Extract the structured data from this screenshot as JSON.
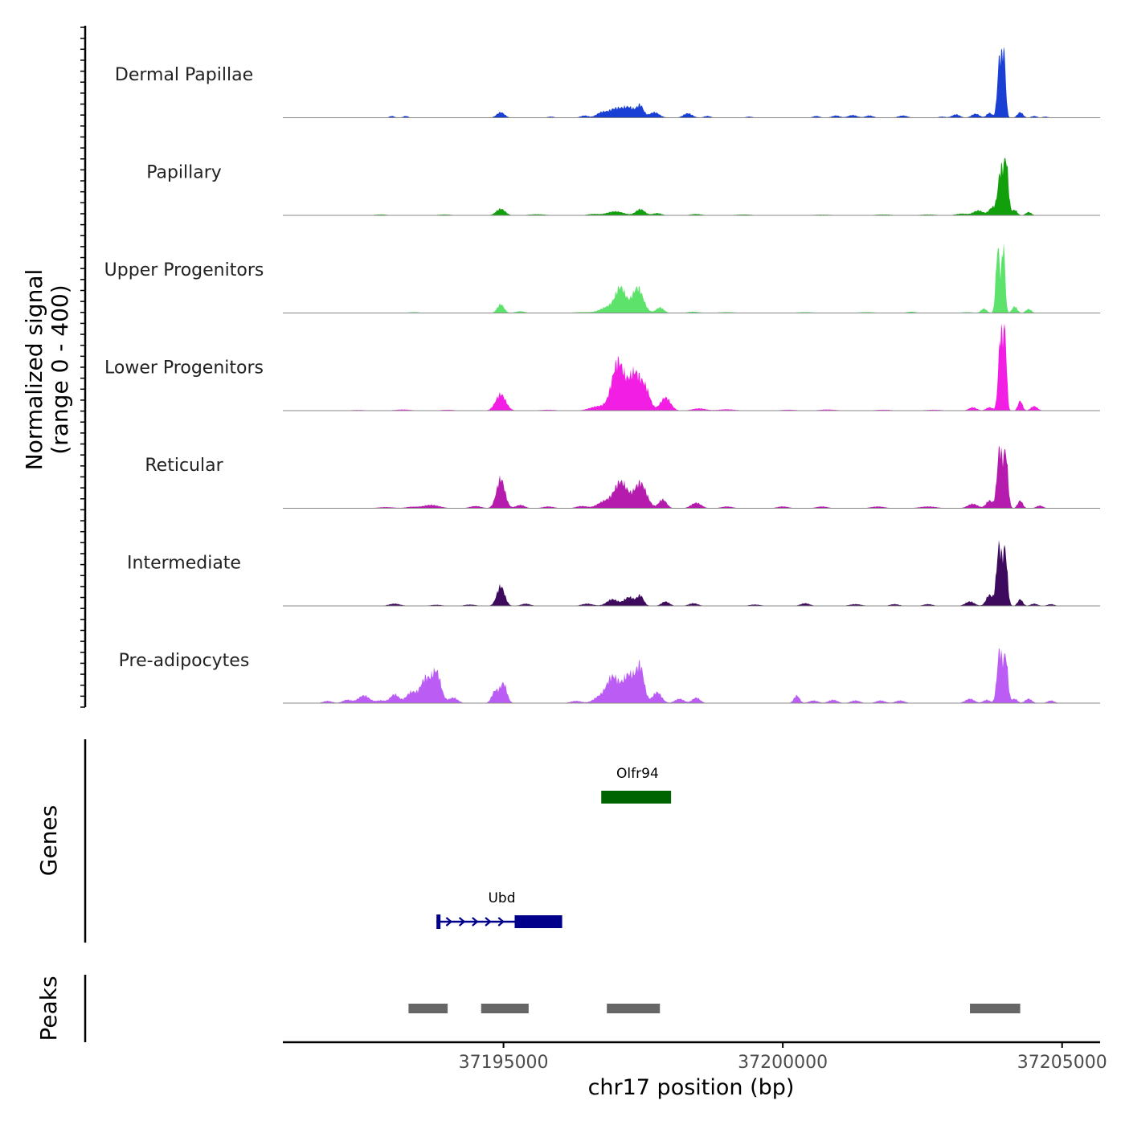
{
  "chart_data": {
    "type": "area",
    "title": "",
    "xlabel": "chr17 position (bp)",
    "ylabel_line1": "Normalized signal",
    "ylabel_line2": "(range 0 - 400)",
    "xlim": [
      37191050,
      37205680
    ],
    "ylim": [
      0,
      400
    ],
    "x_ticks": [
      37195000,
      37200000,
      37205000
    ],
    "x_tick_labels": [
      "37195000",
      "37200000",
      "37205000"
    ],
    "baseline_color": "#888888",
    "tracks": [
      {
        "name": "Dermal Papillae",
        "color": "#1a3fd4",
        "peaks": [
          [
            37193000,
            8,
            45
          ],
          [
            37193250,
            8,
            45
          ],
          [
            37194950,
            25,
            70
          ],
          [
            37195850,
            5,
            60
          ],
          [
            37196450,
            10,
            70
          ],
          [
            37196750,
            22,
            90
          ],
          [
            37197000,
            40,
            120
          ],
          [
            37197250,
            45,
            110
          ],
          [
            37197450,
            50,
            60
          ],
          [
            37197700,
            25,
            90
          ],
          [
            37198300,
            20,
            80
          ],
          [
            37198650,
            8,
            60
          ],
          [
            37199400,
            5,
            60
          ],
          [
            37200600,
            8,
            60
          ],
          [
            37200950,
            10,
            70
          ],
          [
            37201250,
            12,
            80
          ],
          [
            37201550,
            10,
            70
          ],
          [
            37202150,
            10,
            80
          ],
          [
            37202850,
            5,
            60
          ],
          [
            37203100,
            15,
            70
          ],
          [
            37203450,
            18,
            70
          ],
          [
            37203700,
            22,
            50
          ],
          [
            37203880,
            270,
            38
          ],
          [
            37203960,
            280,
            32
          ],
          [
            37204250,
            25,
            50
          ],
          [
            37204500,
            8,
            50
          ],
          [
            37204700,
            5,
            50
          ]
        ]
      },
      {
        "name": "Papillary",
        "color": "#129f0c",
        "peaks": [
          [
            37192800,
            4,
            120
          ],
          [
            37193950,
            4,
            120
          ],
          [
            37194950,
            30,
            80
          ],
          [
            37195600,
            5,
            150
          ],
          [
            37196600,
            6,
            100
          ],
          [
            37197000,
            18,
            150
          ],
          [
            37197450,
            28,
            80
          ],
          [
            37197750,
            10,
            80
          ],
          [
            37198450,
            6,
            100
          ],
          [
            37199300,
            4,
            150
          ],
          [
            37200700,
            3,
            200
          ],
          [
            37201800,
            4,
            150
          ],
          [
            37202600,
            4,
            150
          ],
          [
            37203200,
            8,
            100
          ],
          [
            37203500,
            22,
            90
          ],
          [
            37203750,
            35,
            60
          ],
          [
            37203900,
            200,
            50
          ],
          [
            37204000,
            230,
            40
          ],
          [
            37204150,
            25,
            45
          ],
          [
            37204400,
            15,
            50
          ]
        ]
      },
      {
        "name": "Upper Progenitors",
        "color": "#5de26b",
        "peaks": [
          [
            37193400,
            4,
            100
          ],
          [
            37194950,
            40,
            60
          ],
          [
            37195300,
            8,
            80
          ],
          [
            37196400,
            4,
            150
          ],
          [
            37196900,
            30,
            150
          ],
          [
            37197100,
            105,
            90
          ],
          [
            37197400,
            115,
            100
          ],
          [
            37197800,
            25,
            70
          ],
          [
            37198400,
            6,
            100
          ],
          [
            37199000,
            4,
            150
          ],
          [
            37200400,
            4,
            150
          ],
          [
            37201500,
            4,
            150
          ],
          [
            37202300,
            6,
            80
          ],
          [
            37203300,
            4,
            100
          ],
          [
            37203600,
            20,
            50
          ],
          [
            37203850,
            300,
            35
          ],
          [
            37203950,
            310,
            30
          ],
          [
            37204150,
            30,
            45
          ],
          [
            37204400,
            18,
            50
          ]
        ]
      },
      {
        "name": "Lower Progenitors",
        "color": "#f21ee4",
        "peaks": [
          [
            37192400,
            3,
            150
          ],
          [
            37193200,
            5,
            150
          ],
          [
            37194000,
            4,
            120
          ],
          [
            37194950,
            75,
            90
          ],
          [
            37195800,
            4,
            150
          ],
          [
            37196700,
            20,
            150
          ],
          [
            37197050,
            220,
            110
          ],
          [
            37197350,
            170,
            110
          ],
          [
            37197550,
            80,
            80
          ],
          [
            37197900,
            60,
            90
          ],
          [
            37198500,
            10,
            120
          ],
          [
            37199000,
            6,
            150
          ],
          [
            37200100,
            4,
            150
          ],
          [
            37200800,
            5,
            150
          ],
          [
            37201800,
            4,
            150
          ],
          [
            37202700,
            4,
            150
          ],
          [
            37203400,
            15,
            70
          ],
          [
            37203700,
            15,
            60
          ],
          [
            37203900,
            350,
            40
          ],
          [
            37203980,
            320,
            30
          ],
          [
            37204250,
            45,
            40
          ],
          [
            37204500,
            20,
            60
          ]
        ]
      },
      {
        "name": "Reticular",
        "color": "#b51cae",
        "peaks": [
          [
            37192900,
            5,
            150
          ],
          [
            37193700,
            15,
            150
          ],
          [
            37193350,
            6,
            100
          ],
          [
            37194500,
            10,
            100
          ],
          [
            37194950,
            135,
            75
          ],
          [
            37195300,
            15,
            80
          ],
          [
            37195800,
            8,
            100
          ],
          [
            37196400,
            10,
            100
          ],
          [
            37196800,
            30,
            120
          ],
          [
            37197100,
            120,
            120
          ],
          [
            37197450,
            115,
            110
          ],
          [
            37197850,
            40,
            70
          ],
          [
            37198450,
            25,
            90
          ],
          [
            37199000,
            8,
            100
          ],
          [
            37200000,
            8,
            100
          ],
          [
            37200700,
            8,
            100
          ],
          [
            37201700,
            8,
            120
          ],
          [
            37202600,
            8,
            150
          ],
          [
            37203400,
            20,
            90
          ],
          [
            37203700,
            35,
            60
          ],
          [
            37203880,
            270,
            45
          ],
          [
            37203990,
            250,
            40
          ],
          [
            37204250,
            35,
            45
          ],
          [
            37204600,
            12,
            60
          ]
        ]
      },
      {
        "name": "Intermediate",
        "color": "#3e0a5e",
        "peaks": [
          [
            37193050,
            10,
            100
          ],
          [
            37193800,
            5,
            100
          ],
          [
            37194400,
            6,
            100
          ],
          [
            37194950,
            90,
            70
          ],
          [
            37195400,
            10,
            80
          ],
          [
            37196500,
            10,
            100
          ],
          [
            37196950,
            30,
            100
          ],
          [
            37197250,
            40,
            90
          ],
          [
            37197450,
            45,
            60
          ],
          [
            37197900,
            20,
            70
          ],
          [
            37198400,
            12,
            80
          ],
          [
            37199500,
            6,
            100
          ],
          [
            37200400,
            12,
            80
          ],
          [
            37201300,
            8,
            100
          ],
          [
            37202000,
            8,
            80
          ],
          [
            37202600,
            8,
            80
          ],
          [
            37203350,
            20,
            80
          ],
          [
            37203700,
            50,
            60
          ],
          [
            37203870,
            270,
            45
          ],
          [
            37203980,
            250,
            40
          ],
          [
            37204250,
            30,
            45
          ],
          [
            37204500,
            10,
            60
          ],
          [
            37204800,
            8,
            60
          ]
        ]
      },
      {
        "name": "Pre-adipocytes",
        "color": "#bb5cf5",
        "peaks": [
          [
            37191850,
            10,
            80
          ],
          [
            37192200,
            15,
            80
          ],
          [
            37192500,
            35,
            100
          ],
          [
            37192800,
            12,
            80
          ],
          [
            37193050,
            40,
            80
          ],
          [
            37193350,
            50,
            90
          ],
          [
            37193600,
            110,
            90
          ],
          [
            37193800,
            140,
            80
          ],
          [
            37194100,
            25,
            80
          ],
          [
            37194850,
            55,
            60
          ],
          [
            37195000,
            90,
            60
          ],
          [
            37196300,
            10,
            100
          ],
          [
            37196700,
            25,
            100
          ],
          [
            37196950,
            120,
            110
          ],
          [
            37197250,
            130,
            110
          ],
          [
            37197450,
            150,
            70
          ],
          [
            37197750,
            50,
            80
          ],
          [
            37198150,
            20,
            80
          ],
          [
            37198450,
            25,
            70
          ],
          [
            37200250,
            35,
            50
          ],
          [
            37200550,
            12,
            80
          ],
          [
            37200900,
            15,
            80
          ],
          [
            37201300,
            12,
            80
          ],
          [
            37201750,
            12,
            80
          ],
          [
            37202100,
            12,
            80
          ],
          [
            37203350,
            20,
            80
          ],
          [
            37203650,
            15,
            60
          ],
          [
            37203880,
            240,
            45
          ],
          [
            37203990,
            210,
            40
          ],
          [
            37204150,
            20,
            50
          ],
          [
            37204400,
            20,
            60
          ],
          [
            37204800,
            12,
            60
          ]
        ]
      }
    ],
    "genes": {
      "label": "Genes",
      "items": [
        {
          "name": "Olfr94",
          "start": 37196750,
          "end": 37198000,
          "strand": "",
          "color": "#006400",
          "label_x": 37197400
        },
        {
          "name": "Ubd",
          "start": 37193800,
          "end": 37196050,
          "strand": "+",
          "color": "#00008b",
          "cds_start": 37195200,
          "label_x": 37194970
        }
      ]
    },
    "peaks": {
      "label": "Peaks",
      "color": "#666666",
      "regions": [
        [
          37193300,
          37194000
        ],
        [
          37194600,
          37195450
        ],
        [
          37196850,
          37197800
        ],
        [
          37203350,
          37204250
        ]
      ]
    }
  }
}
